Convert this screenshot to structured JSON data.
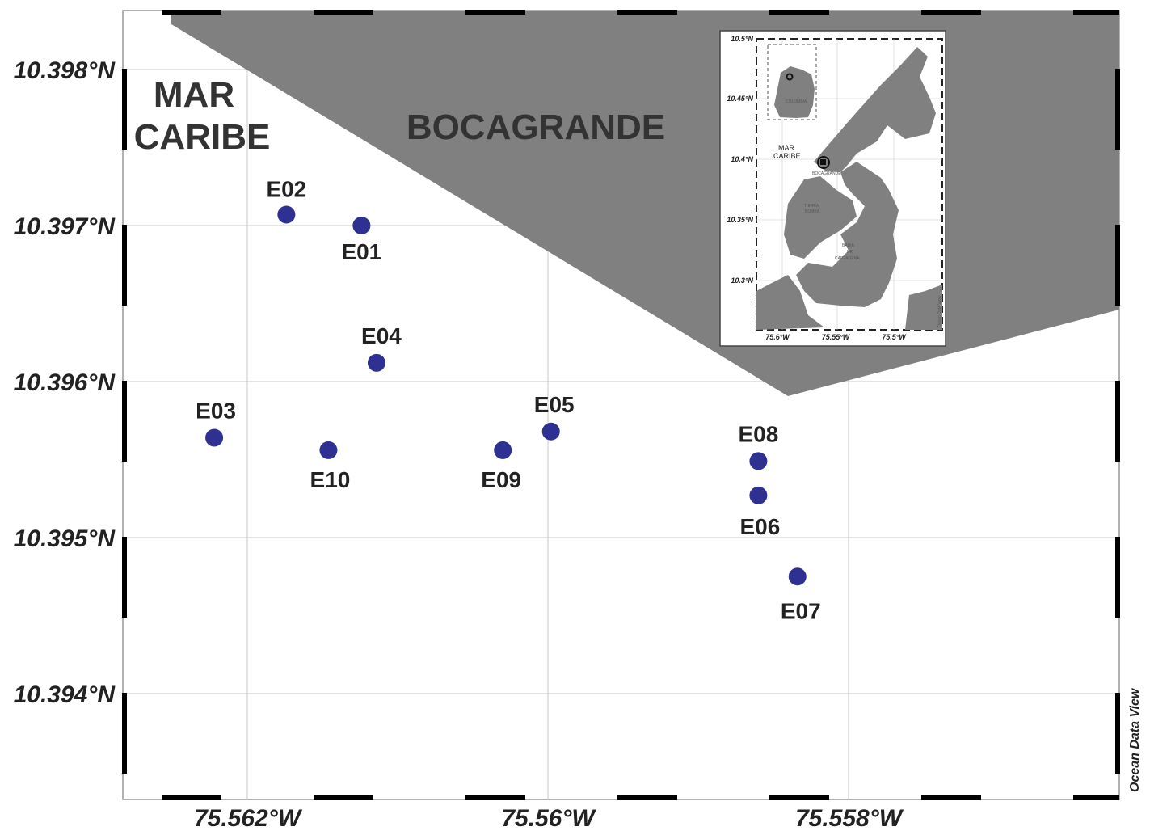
{
  "map": {
    "regions": {
      "sea": "MAR CARIBE",
      "sea_line1": "MAR",
      "sea_line2": "CARIBE",
      "land": "BOCAGRANDE"
    },
    "lat_ticks": [
      {
        "value": 10.398,
        "label": "10.398°N"
      },
      {
        "value": 10.397,
        "label": "10.397°N"
      },
      {
        "value": 10.396,
        "label": "10.396°N"
      },
      {
        "value": 10.395,
        "label": "10.395°N"
      },
      {
        "value": 10.394,
        "label": "10.394°N"
      }
    ],
    "lon_ticks": [
      {
        "value": -75.562,
        "label": "75.562°W"
      },
      {
        "value": -75.56,
        "label": "75.56°W"
      },
      {
        "value": -75.558,
        "label": "75.558°W"
      }
    ],
    "stations": [
      {
        "id": "E01",
        "lon": -75.56124,
        "lat": 10.397
      },
      {
        "id": "E02",
        "lon": -75.56174,
        "lat": 10.39707
      },
      {
        "id": "E03",
        "lon": -75.56222,
        "lat": 10.39564
      },
      {
        "id": "E04",
        "lon": -75.56114,
        "lat": 10.39612
      },
      {
        "id": "E05",
        "lon": -75.55998,
        "lat": 10.39568
      },
      {
        "id": "E06",
        "lon": -75.5586,
        "lat": 10.39527
      },
      {
        "id": "E07",
        "lon": -75.55834,
        "lat": 10.39475
      },
      {
        "id": "E08",
        "lon": -75.5586,
        "lat": 10.39549
      },
      {
        "id": "E09",
        "lon": -75.5603,
        "lat": 10.39556
      },
      {
        "id": "E10",
        "lon": -75.56146,
        "lat": 10.39556
      }
    ],
    "station_color": "#2e3191",
    "land_color": "#808080",
    "credit": "Ocean Data View"
  },
  "inset": {
    "lat_ticks": [
      "10.5°N",
      "10.45°N",
      "10.4°N",
      "10.35°N",
      "10.3°N"
    ],
    "lon_ticks": [
      "75.6°W",
      "75.55°W",
      "75.5°W"
    ],
    "labels": {
      "sea_line1": "MAR",
      "sea_line2": "CARIBE",
      "bocagrande": "BOCAGRANDE",
      "tierra_bomba_1": "TIERRA",
      "tierra_bomba_2": "BOMBA",
      "bahia_1": "BAHIA",
      "bahia_2": "DE",
      "bahia_3": "CARTAGENA",
      "colombia": "COLOMBIA"
    },
    "credit": "Ocean Data View"
  }
}
